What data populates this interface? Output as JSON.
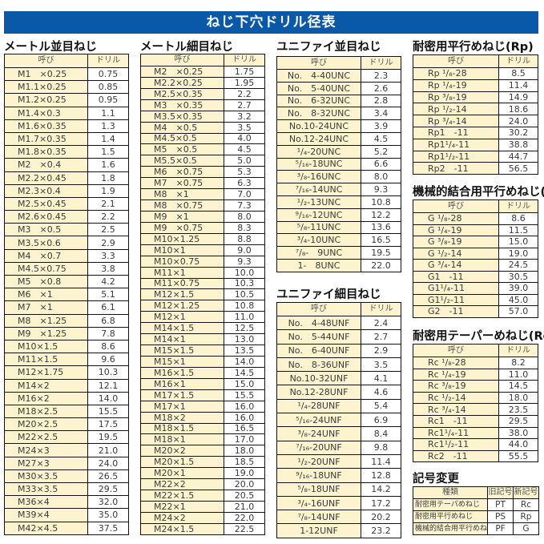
{
  "title": "ねじ下穴ドリル径表",
  "header": {
    "name": "呼び",
    "drill": "ドリル"
  },
  "colors": {
    "title_bg": "#0a58a8",
    "cell_bg": "#fdf4cf"
  },
  "tables": [
    {
      "id": "metric-coarse",
      "title": "メートル並目ねじ",
      "rows": [
        [
          "M1　×0.25",
          "0.75"
        ],
        [
          "M1.1×0.25",
          "0.85"
        ],
        [
          "M1.2×0.25",
          "0.95"
        ],
        [
          "M1.4×0.3",
          "1.1"
        ],
        [
          "M1.6×0.35",
          "1.3"
        ],
        [
          "M1.7×0.35",
          "1.4"
        ],
        [
          "M1.8×0.35",
          "1.5"
        ],
        [
          "M2　×0.4",
          "1.6"
        ],
        [
          "M2.2×0.45",
          "1.8"
        ],
        [
          "M2.3×0.4",
          "1.9"
        ],
        [
          "M2.5×0.45",
          "2.1"
        ],
        [
          "M2.6×0.45",
          "2.2"
        ],
        [
          "M3　×0.5",
          "2.5"
        ],
        [
          "M3.5×0.6",
          "2.9"
        ],
        [
          "M4　×0.7",
          "3.3"
        ],
        [
          "M4.5×0.75",
          "3.8"
        ],
        [
          "M5　×0.8",
          "4.2"
        ],
        [
          "M6　×1",
          "5.1"
        ],
        [
          "M7　×1",
          "6.1"
        ],
        [
          "M8　×1.25",
          "6.8"
        ],
        [
          "M9　×1.25",
          "7.8"
        ],
        [
          "M10×1.5",
          "8.6"
        ],
        [
          "M11×1.5",
          "9.6"
        ],
        [
          "M12×1.75",
          "10.3"
        ],
        [
          "M14×2",
          "12.1"
        ],
        [
          "M16×2",
          "14.0"
        ],
        [
          "M18×2.5",
          "15.5"
        ],
        [
          "M20×2.5",
          "17.5"
        ],
        [
          "M22×2.5",
          "19.5"
        ],
        [
          "M24×3",
          "21.0"
        ],
        [
          "M27×3",
          "24.0"
        ],
        [
          "M30×3.5",
          "26.5"
        ],
        [
          "M33×3.5",
          "29.5"
        ],
        [
          "M36×4",
          "32.0"
        ],
        [
          "M39×4",
          "35.0"
        ],
        [
          "M42×4.5",
          "37.5"
        ]
      ]
    },
    {
      "id": "metric-fine",
      "title": "メートル細目ねじ",
      "rows": [
        [
          "M2　×0.25",
          "1.75"
        ],
        [
          "M2.2×0.25",
          "1.95"
        ],
        [
          "M2.5×0.35",
          "2.2"
        ],
        [
          "M3　×0.35",
          "2.7"
        ],
        [
          "M3.5×0.35",
          "3.2"
        ],
        [
          "M4　×0.5",
          "3.5"
        ],
        [
          "M4.5×0.5",
          "4.0"
        ],
        [
          "M5　×0.5",
          "4.5"
        ],
        [
          "M5.5×0.5",
          "5.0"
        ],
        [
          "M6　×0.75",
          "5.3"
        ],
        [
          "M7　×0.75",
          "6.3"
        ],
        [
          "M8　×1",
          "7.0"
        ],
        [
          "M8　×0.75",
          "7.3"
        ],
        [
          "M9　×1",
          "8.0"
        ],
        [
          "M9　×0.75",
          "8.3"
        ],
        [
          "M10×1.25",
          "8.8"
        ],
        [
          "M10×1",
          "9.0"
        ],
        [
          "M10×0.75",
          "9.3"
        ],
        [
          "M11×1",
          "10.0"
        ],
        [
          "M11×0.75",
          "10.3"
        ],
        [
          "M12×1.5",
          "10.5"
        ],
        [
          "M12×1.25",
          "10.8"
        ],
        [
          "M12×1",
          "11.0"
        ],
        [
          "M14×1.5",
          "12.5"
        ],
        [
          "M14×1",
          "13.0"
        ],
        [
          "M15×1.5",
          "13.5"
        ],
        [
          "M15×1",
          "14.0"
        ],
        [
          "M16×1.5",
          "14.5"
        ],
        [
          "M16×1",
          "15.0"
        ],
        [
          "M17×1.5",
          "15.5"
        ],
        [
          "M17×1",
          "16.0"
        ],
        [
          "M18×2",
          "16.0"
        ],
        [
          "M18×1.5",
          "16.5"
        ],
        [
          "M18×1",
          "17.0"
        ],
        [
          "M20×2",
          "18.0"
        ],
        [
          "M20×1.5",
          "18.5"
        ],
        [
          "M20×1",
          "19.0"
        ],
        [
          "M22×2",
          "20.0"
        ],
        [
          "M22×1.5",
          "20.5"
        ],
        [
          "M22×1",
          "21.0"
        ],
        [
          "M24×2",
          "22.0"
        ],
        [
          "M24×1.5",
          "22.5"
        ]
      ]
    },
    {
      "id": "unified-coarse",
      "title": "ユニファイ並目ねじ",
      "rows": [
        [
          "No.　4-40UNC",
          "2.3"
        ],
        [
          "No.　5-40UNC",
          "2.6"
        ],
        [
          "No.　6-32UNC",
          "2.8"
        ],
        [
          "No.　8-32UNC",
          "3.4"
        ],
        [
          "No.10-24UNC",
          "3.9"
        ],
        [
          "No.12-24UNC",
          "4.5"
        ],
        [
          "¹/₄-20UNC",
          "5.2"
        ],
        [
          "⁵/₁₆-18UNC",
          "6.6"
        ],
        [
          "³/₈-16UNC",
          "8.0"
        ],
        [
          "⁷/₁₆-14UNC",
          "9.3"
        ],
        [
          "¹/₂-13UNC",
          "10.8"
        ],
        [
          "⁹/₁₆-12UNC",
          "12.2"
        ],
        [
          "⁵/₈-11UNC",
          "13.6"
        ],
        [
          "³/₄-10UNC",
          "16.5"
        ],
        [
          "⁷/₈-　9UNC",
          "19.5"
        ],
        [
          "1-　8UNC",
          "22.0"
        ]
      ]
    },
    {
      "id": "unified-fine",
      "title": "ユニファイ細目ねじ",
      "rows": [
        [
          "No.　4-48UNF",
          "2.4"
        ],
        [
          "No.　5-44UNF",
          "2.7"
        ],
        [
          "No.　6-40UNF",
          "2.9"
        ],
        [
          "No.　8-36UNF",
          "3.5"
        ],
        [
          "No.10-32UNF",
          "4.1"
        ],
        [
          "No.12-28UNF",
          "4.6"
        ],
        [
          "¹/₄-28UNF",
          "5.4"
        ],
        [
          "⁵/₁₆-24UNF",
          "6.9"
        ],
        [
          "³/₈-24UNF",
          "8.4"
        ],
        [
          "⁷/₁₆-20UNF",
          "9.8"
        ],
        [
          "¹/₂-20UNF",
          "11.4"
        ],
        [
          "⁹/₁₆-18UNF",
          "12.8"
        ],
        [
          "⁵/₈-18UNF",
          "14.2"
        ],
        [
          "³/₄-16UNF",
          "17.2"
        ],
        [
          "⁷/₈-14UNF",
          "20.2"
        ],
        [
          "1-12UNF",
          "23.2"
        ]
      ]
    },
    {
      "id": "rp",
      "title": "耐密用平行めねじ(Rp)",
      "rows": [
        [
          "Rp ¹/₈-28",
          "8.5"
        ],
        [
          "Rp ¹/₄-19",
          "11.4"
        ],
        [
          "Rp ³/₈-19",
          "14.9"
        ],
        [
          "Rp ¹/₂-14",
          "18.6"
        ],
        [
          "Rp ³/₄-14",
          "24.0"
        ],
        [
          "Rp1　-11",
          "30.2"
        ],
        [
          "Rp1¹/₄-11",
          "38.8"
        ],
        [
          "Rp1¹/₂-11",
          "44.7"
        ],
        [
          "Rp2　-11",
          "56.5"
        ]
      ]
    },
    {
      "id": "g",
      "title": "機械的結合用平行めねじ(G)",
      "rows": [
        [
          "G ¹/₈-28",
          "8.6"
        ],
        [
          "G ¹/₄-19",
          "11.5"
        ],
        [
          "G ³/₈-19",
          "15.0"
        ],
        [
          "G ¹/₂-14",
          "19.0"
        ],
        [
          "G ³/₄-14",
          "24.5"
        ],
        [
          "G1　-11",
          "30.5"
        ],
        [
          "G1¹/₄-11",
          "39.0"
        ],
        [
          "G1¹/₂-11",
          "45.0"
        ],
        [
          "G2　-11",
          "57.0"
        ]
      ]
    },
    {
      "id": "rc",
      "title": "耐密用テーパーめねじ(Rc)",
      "rows": [
        [
          "Rc ¹/₈-28",
          "8.2"
        ],
        [
          "Rc ¹/₄-19",
          "11.0"
        ],
        [
          "Rc ³/₈-19",
          "14.5"
        ],
        [
          "Rc ¹/₂-14",
          "18.0"
        ],
        [
          "Rc ³/₄-14",
          "23.5"
        ],
        [
          "Rc1　-11",
          "29.5"
        ],
        [
          "Rc1¹/₄-11",
          "38.0"
        ],
        [
          "Rc1¹/₂-11",
          "44.0"
        ],
        [
          "Rc2　-11",
          "55.5"
        ]
      ]
    }
  ],
  "symbols": {
    "title": "記号変更",
    "header": [
      "種類",
      "旧記号",
      "新記号"
    ],
    "rows": [
      [
        "耐密用テーパめねじ",
        "PT",
        "Rc"
      ],
      [
        "耐密用平行めねじ",
        "PS",
        "Rp"
      ],
      [
        "機械的結合用平行めねじ",
        "PF",
        "G"
      ]
    ]
  }
}
